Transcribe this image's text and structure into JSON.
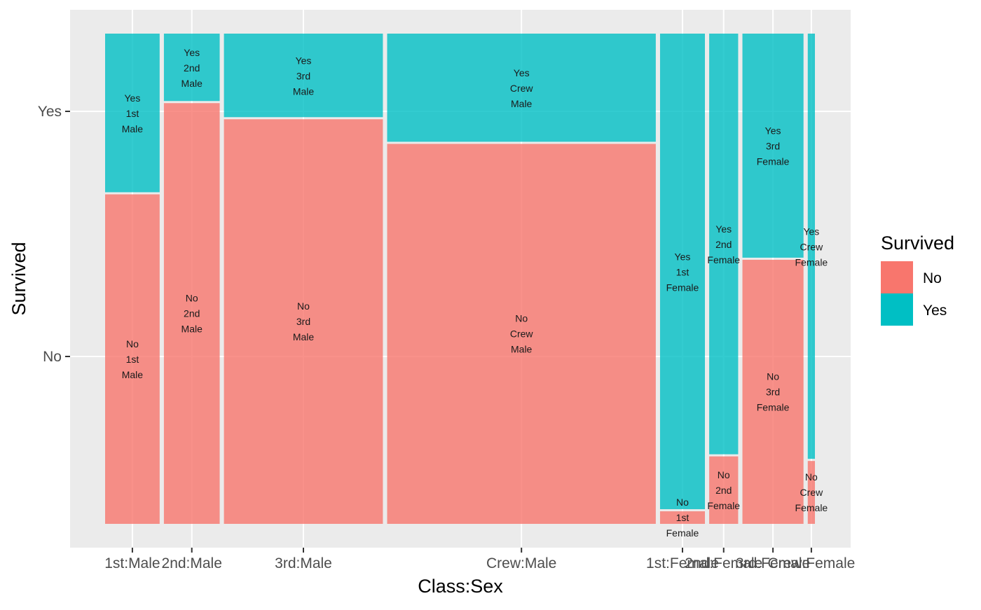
{
  "chart_data": {
    "type": "mosaic",
    "title": "",
    "xlabel": "Class:Sex",
    "ylabel": "Survived",
    "grid": true,
    "legend": {
      "title": "Survived",
      "position": "right",
      "entries": [
        {
          "label": "No",
          "color": "#F8766D"
        },
        {
          "label": "Yes",
          "color": "#00BFC4"
        }
      ]
    },
    "x_ticks": [
      "1st:Male",
      "2nd:Male",
      "3rd:Male",
      "Crew:Male",
      "1st:Female",
      "2nd:Female",
      "3rd:Female",
      "Crew:Female"
    ],
    "y_ticks": [
      "No",
      "Yes"
    ],
    "categories": [
      {
        "label": "1st:Male",
        "class": "1st",
        "sex": "Male",
        "no": 118,
        "yes": 57
      },
      {
        "label": "2nd:Male",
        "class": "2nd",
        "sex": "Male",
        "no": 154,
        "yes": 25
      },
      {
        "label": "3rd:Male",
        "class": "3rd",
        "sex": "Male",
        "no": 422,
        "yes": 88
      },
      {
        "label": "Crew:Male",
        "class": "Crew",
        "sex": "Male",
        "no": 670,
        "yes": 192
      },
      {
        "label": "1st:Female",
        "class": "1st",
        "sex": "Female",
        "no": 4,
        "yes": 140
      },
      {
        "label": "2nd:Female",
        "class": "2nd",
        "sex": "Female",
        "no": 13,
        "yes": 80
      },
      {
        "label": "3rd:Female",
        "class": "3rd",
        "sex": "Female",
        "no": 106,
        "yes": 90
      },
      {
        "label": "Crew:Female",
        "class": "Crew",
        "sex": "Female",
        "no": 3,
        "yes": 20
      }
    ],
    "colors": {
      "No": "#F8766D",
      "Yes": "#00BFC4"
    },
    "panel_background": "#EBEBEB",
    "grid_color": "#FFFFFF"
  }
}
